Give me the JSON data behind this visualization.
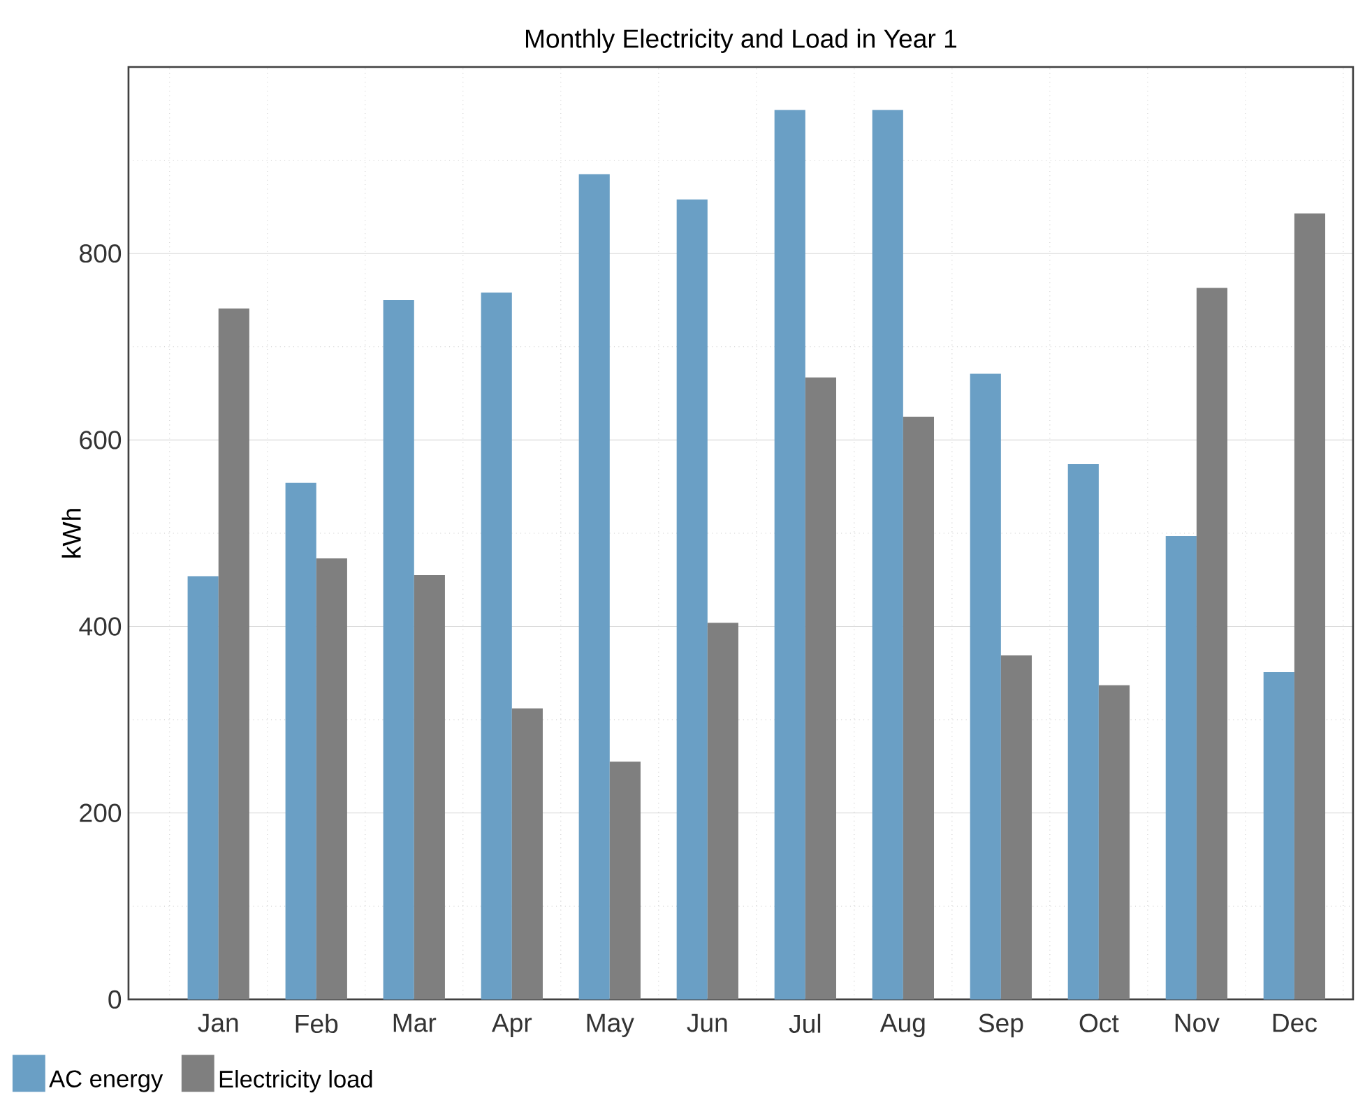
{
  "chart_data": {
    "type": "bar",
    "title": "Monthly Electricity and Load in Year 1",
    "ylabel": "kWh",
    "categories": [
      "Jan",
      "Feb",
      "Mar",
      "Apr",
      "May",
      "Jun",
      "Jul",
      "Aug",
      "Sep",
      "Oct",
      "Nov",
      "Dec"
    ],
    "series": [
      {
        "name": "AC energy",
        "color": "#6a9fc5",
        "values": [
          454,
          554,
          750,
          758,
          885,
          858,
          954,
          954,
          671,
          574,
          497,
          351
        ]
      },
      {
        "name": "Electricity load",
        "color": "#7f7f7f",
        "values": [
          741,
          473,
          455,
          312,
          255,
          404,
          667,
          625,
          369,
          337,
          763,
          843
        ]
      }
    ],
    "ylim": [
      0,
      1000
    ],
    "yticks": [
      0,
      200,
      400,
      600,
      800,
      {
        "value": 1000,
        "label": null
      }
    ],
    "grid": true,
    "legend": "bottom left"
  }
}
